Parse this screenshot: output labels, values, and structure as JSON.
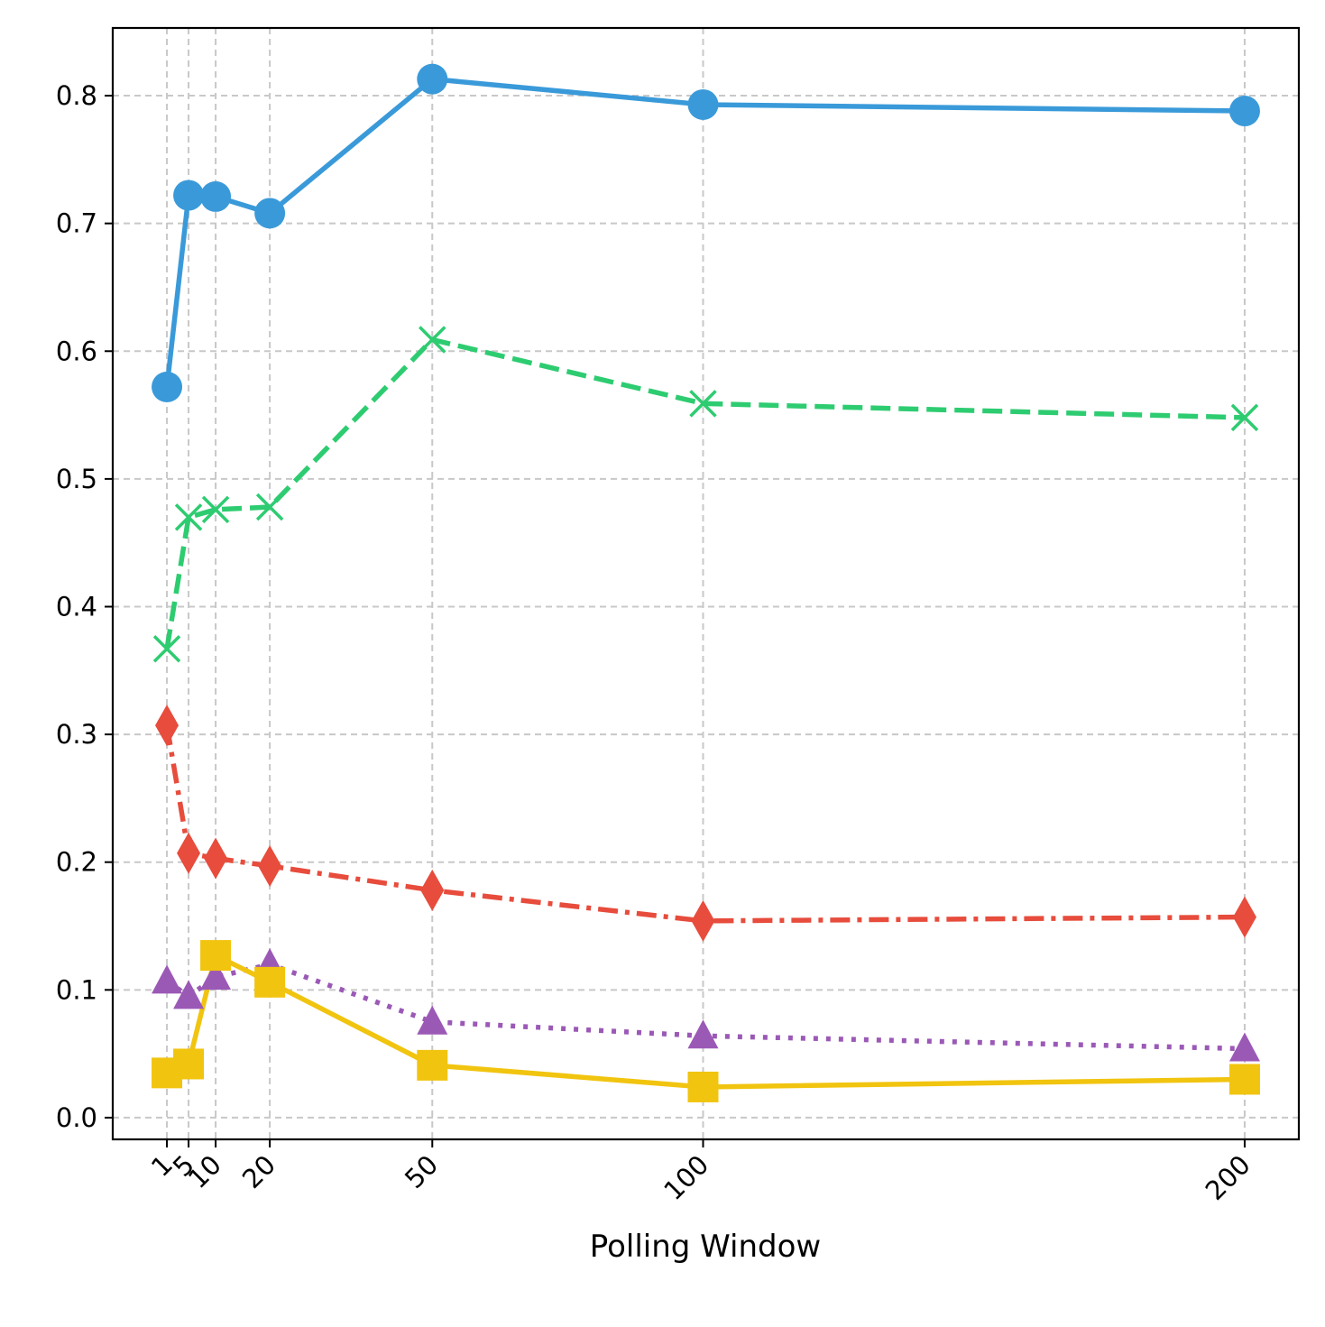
{
  "chart_data": {
    "type": "line",
    "title": "",
    "xlabel": "Polling Window",
    "ylabel": "",
    "x": [
      1,
      5,
      10,
      20,
      50,
      100,
      200
    ],
    "x_tick_labels": [
      "1",
      "5",
      "10",
      "20",
      "50",
      "100",
      "200"
    ],
    "xlim": [
      -9,
      210
    ],
    "ylim": [
      -0.017,
      0.853
    ],
    "y_ticks": [
      0.0,
      0.1,
      0.2,
      0.3,
      0.4,
      0.5,
      0.6,
      0.7,
      0.8
    ],
    "y_tick_labels": [
      "0.0",
      "0.1",
      "0.2",
      "0.3",
      "0.4",
      "0.5",
      "0.6",
      "0.7",
      "0.8"
    ],
    "grid": true,
    "series": [
      {
        "name": "blue-circle-solid",
        "color": "#3a9ad9",
        "marker": "circle",
        "linestyle": "solid",
        "values": [
          0.572,
          0.722,
          0.721,
          0.708,
          0.813,
          0.793,
          0.788
        ]
      },
      {
        "name": "green-x-dashed",
        "color": "#2ecc71",
        "marker": "x",
        "linestyle": "dashed",
        "values": [
          0.367,
          0.47,
          0.476,
          0.478,
          0.609,
          0.559,
          0.548
        ]
      },
      {
        "name": "red-diamond-dashdot",
        "color": "#e74c3c",
        "marker": "diamond",
        "linestyle": "dashdot",
        "values": [
          0.307,
          0.207,
          0.203,
          0.197,
          0.178,
          0.154,
          0.157
        ]
      },
      {
        "name": "purple-triangle-dotted",
        "color": "#9b59b6",
        "marker": "triangle",
        "linestyle": "dotted",
        "values": [
          0.107,
          0.095,
          0.11,
          0.12,
          0.075,
          0.064,
          0.054
        ]
      },
      {
        "name": "yellow-square-solid",
        "color": "#f1c40f",
        "marker": "square",
        "linestyle": "solid",
        "values": [
          0.035,
          0.042,
          0.127,
          0.106,
          0.041,
          0.024,
          0.03
        ]
      }
    ]
  }
}
